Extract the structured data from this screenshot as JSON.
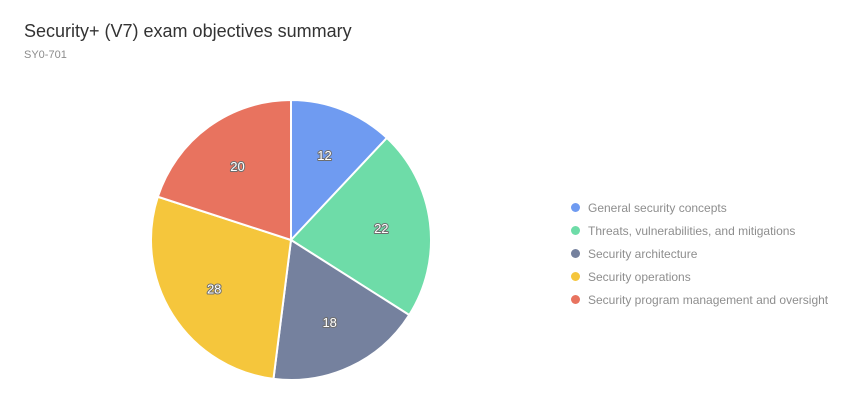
{
  "header": {
    "title": "Security+ (V7) exam objectives summary",
    "subtitle": "SY0-701"
  },
  "chart_data": {
    "type": "pie",
    "title": "Security+ (V7) exam objectives summary",
    "subtitle": "SY0-701",
    "categories": [
      "General security concepts",
      "Threats, vulnerabilities, and mitigations",
      "Security architecture",
      "Security operations",
      "Security program management and oversight"
    ],
    "values": [
      12,
      22,
      18,
      28,
      20
    ],
    "colors": [
      "#6f9bf1",
      "#6edca8",
      "#75819e",
      "#f5c63c",
      "#e8735f"
    ],
    "total": 100,
    "start_angle_deg": 0,
    "direction": "clockwise",
    "slice_labels_show": "values",
    "legend_position": "right",
    "slice_border_color": "#ffffff",
    "label_text_color": "#ffffff",
    "label_outline_color": "#6e6e6e"
  }
}
